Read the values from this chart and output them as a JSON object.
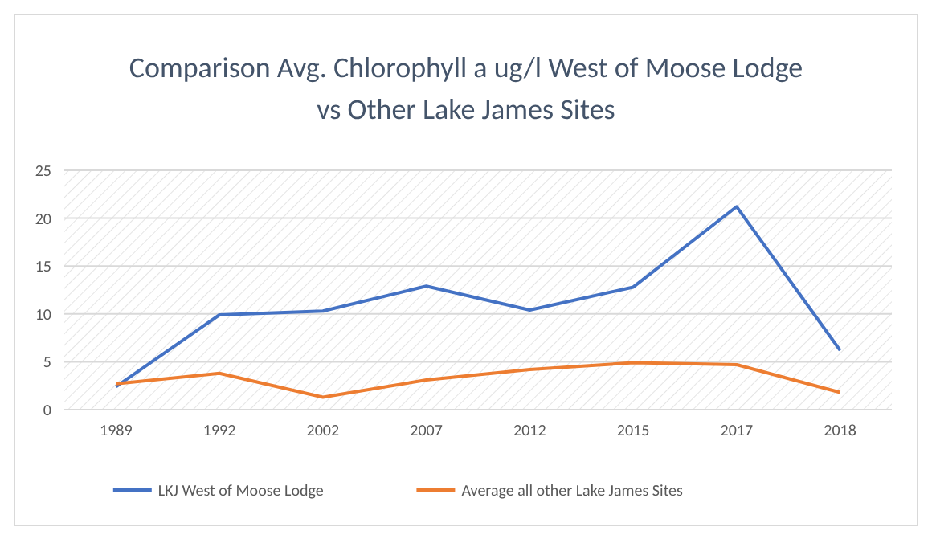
{
  "chart_data": {
    "type": "line",
    "title": "Comparison Avg. Chlorophyll a ug/l West of Moose Lodge vs Other Lake James Sites",
    "categories": [
      "1989",
      "1992",
      "2002",
      "2007",
      "2012",
      "2015",
      "2017",
      "2018"
    ],
    "series": [
      {
        "name": "LKJ West of Moose Lodge",
        "color": "#4472c4",
        "values": [
          2.4,
          9.9,
          10.3,
          12.9,
          10.4,
          12.8,
          21.2,
          6.2
        ]
      },
      {
        "name": "Average all other Lake James Sites",
        "color": "#ed7d31",
        "values": [
          2.7,
          3.8,
          1.3,
          3.1,
          4.2,
          4.9,
          4.7,
          1.8
        ]
      }
    ],
    "ylim": [
      0,
      25
    ],
    "yticks": [
      0,
      5,
      10,
      15,
      20,
      25
    ],
    "grid": "y",
    "legend": "bottom",
    "marker": "none",
    "line_style": "solid"
  }
}
